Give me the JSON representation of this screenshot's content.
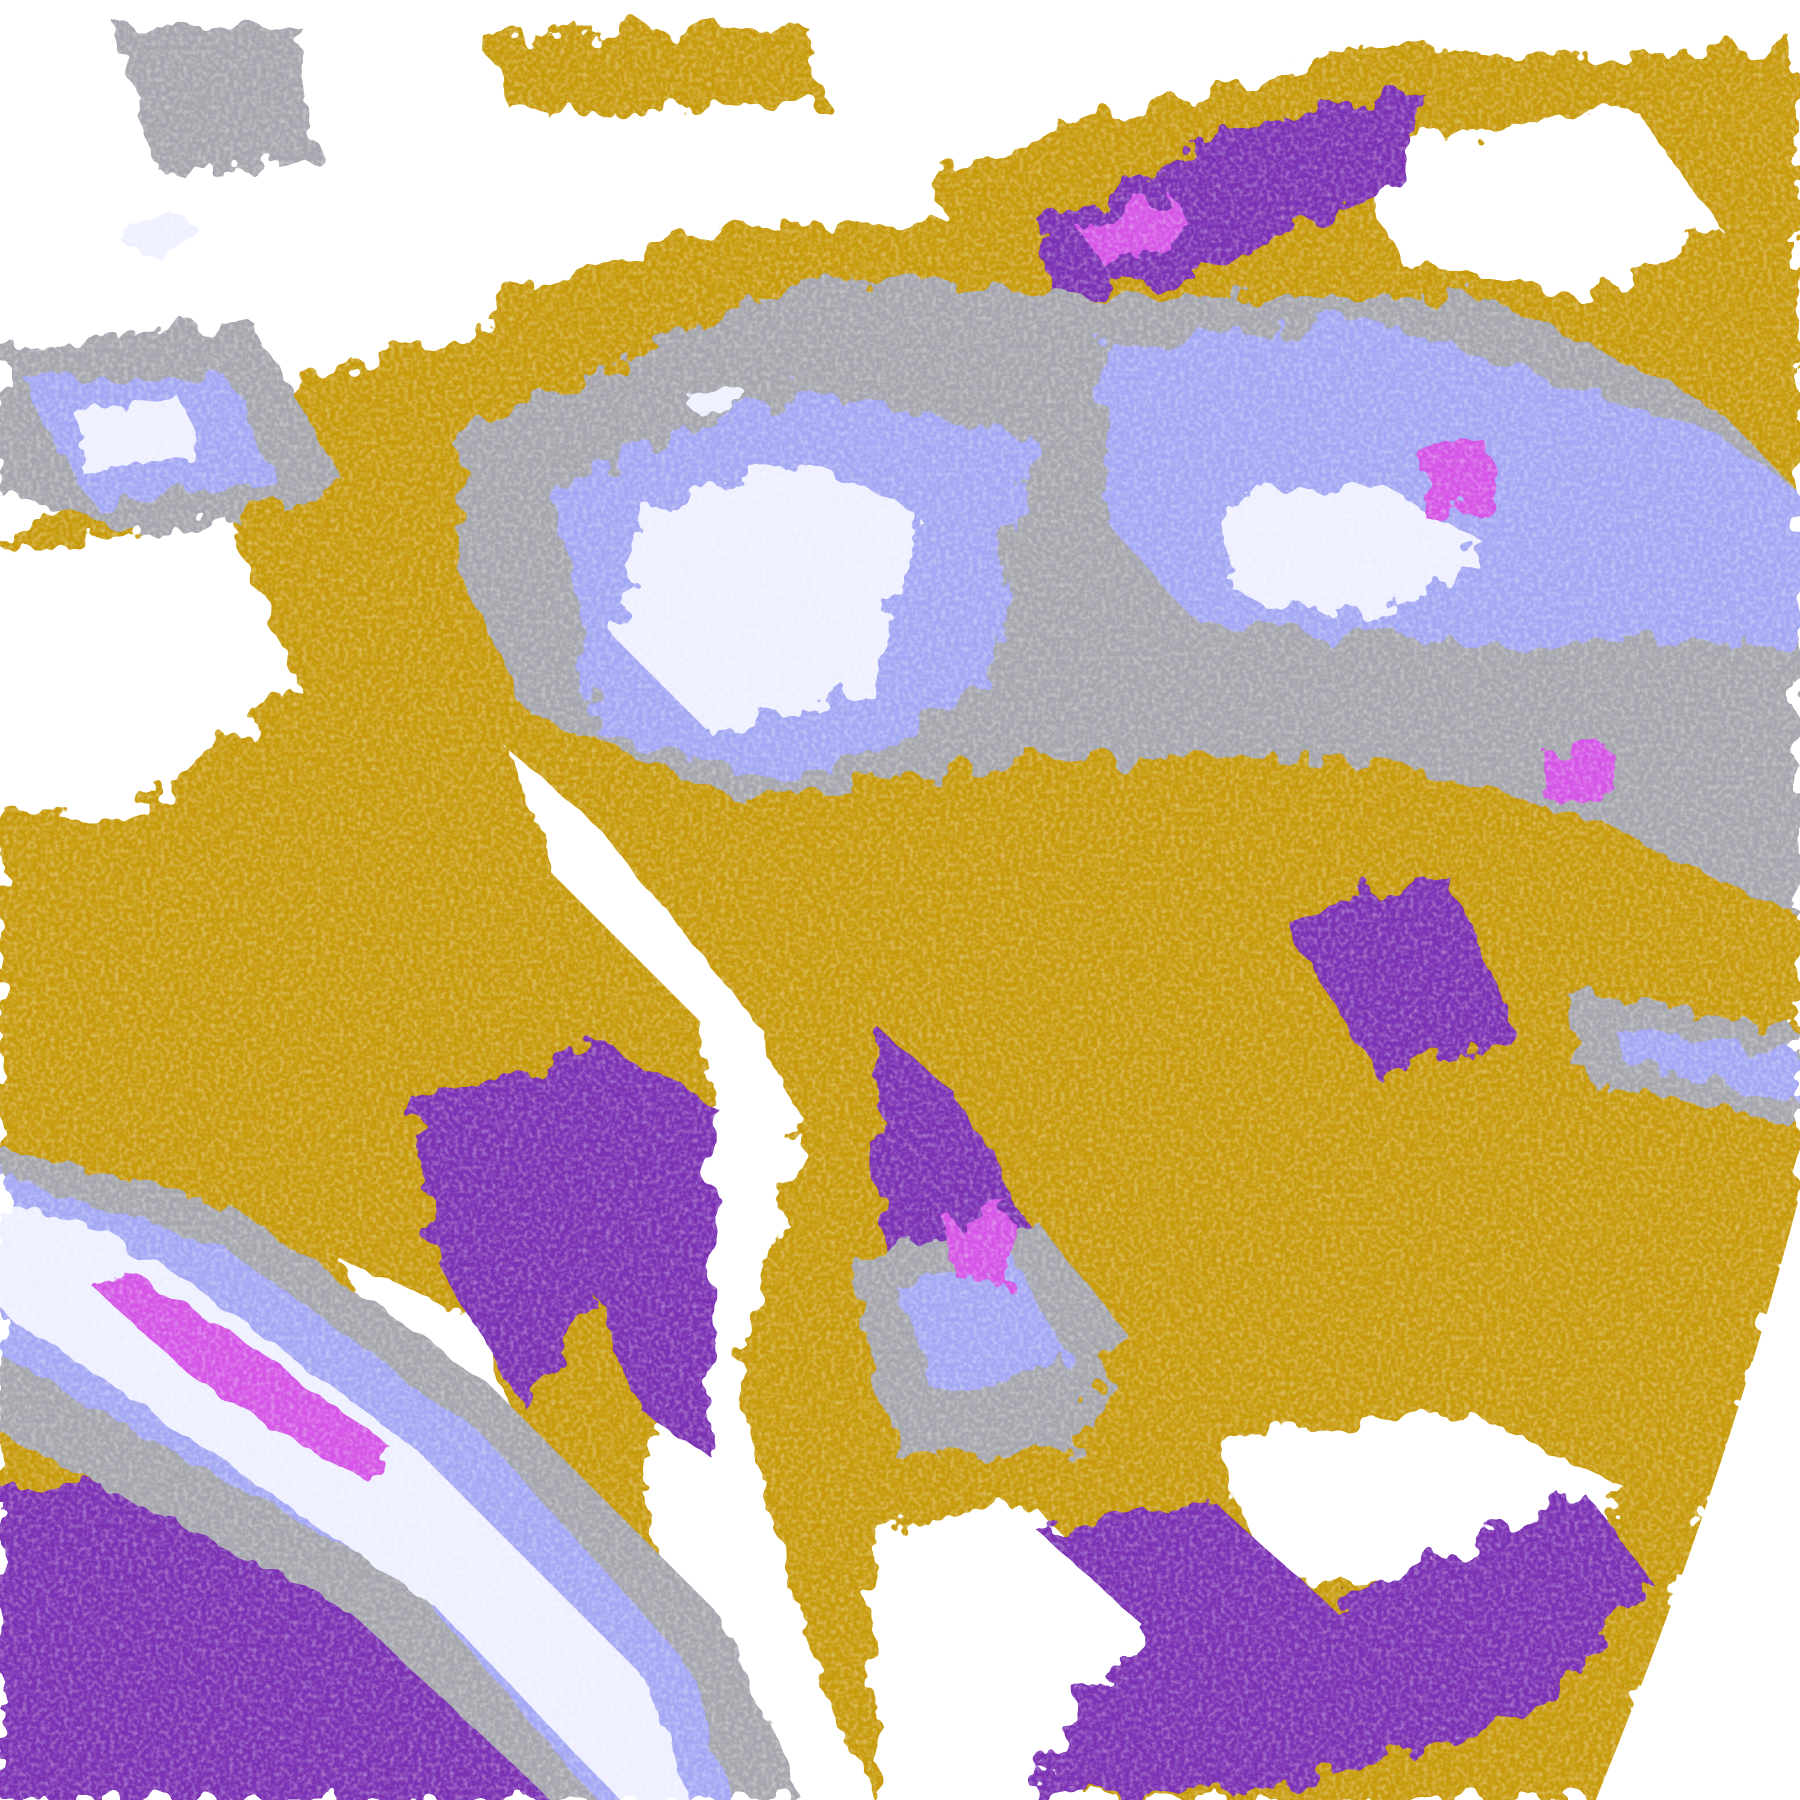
{
  "map": {
    "type": "satellite-cloud-classification",
    "colors": {
      "clear": "#ffffff",
      "class_gold": "#c89b0a",
      "class_purple": "#7b32b4",
      "class_magenta": "#d455e6",
      "class_lavender": "#a4a8f4",
      "class_pale": "#eef0ff",
      "class_gray": "#a6a6ae"
    },
    "earth_limb": "right-edge"
  }
}
